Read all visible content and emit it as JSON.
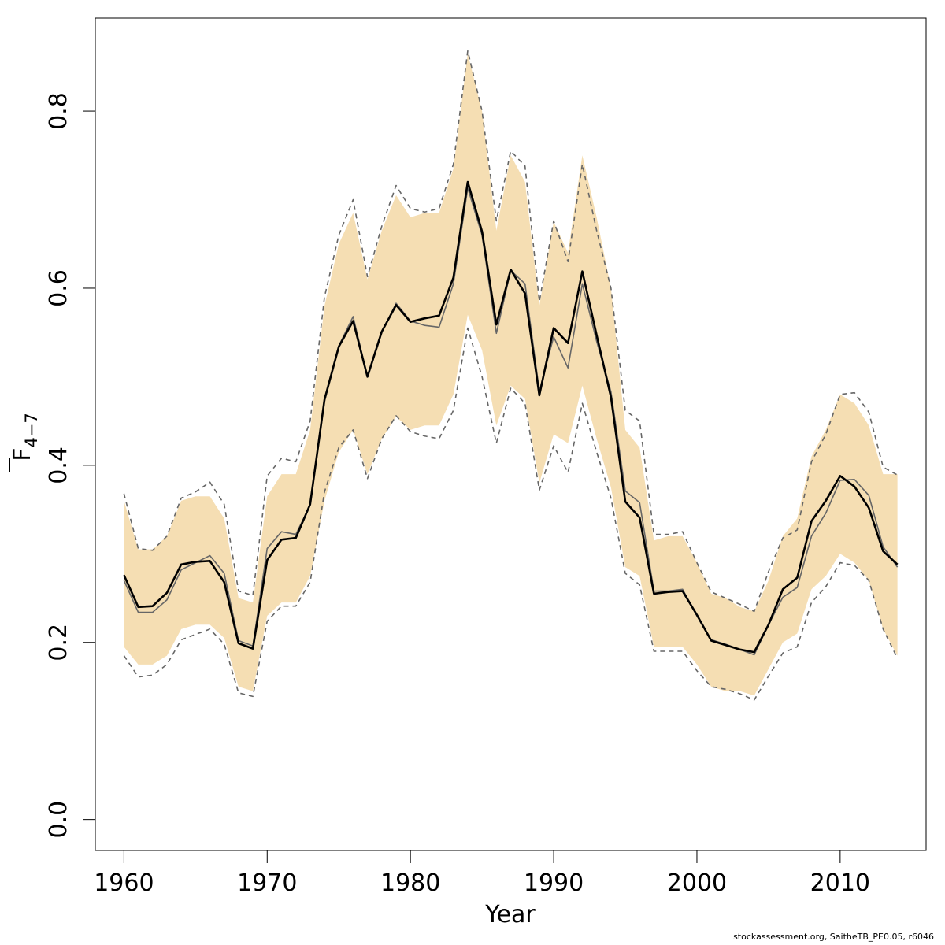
{
  "chart_data": {
    "type": "line",
    "title": "",
    "xlabel": "Year",
    "ylabel_main": "F",
    "ylabel_sub": "4−7",
    "xlim": [
      1958,
      2016
    ],
    "ylim": [
      -0.035,
      0.905
    ],
    "x_ticks": [
      1960,
      1970,
      1980,
      1990,
      2000,
      2010
    ],
    "x_tick_labels": [
      "1960",
      "1970",
      "1980",
      "1990",
      "2000",
      "2010"
    ],
    "y_ticks": [
      0.0,
      0.2,
      0.4,
      0.6,
      0.8
    ],
    "y_tick_labels": [
      "0.0",
      "0.2",
      "0.4",
      "0.6",
      "0.8"
    ],
    "x": [
      1960,
      1961,
      1962,
      1963,
      1964,
      1965,
      1966,
      1967,
      1968,
      1969,
      1970,
      1971,
      1972,
      1973,
      1974,
      1975,
      1976,
      1977,
      1978,
      1979,
      1980,
      1981,
      1982,
      1983,
      1984,
      1985,
      1986,
      1987,
      1988,
      1989,
      1990,
      1991,
      1992,
      1993,
      1994,
      1995,
      1996,
      1997,
      1998,
      1999,
      2000,
      2001,
      2002,
      2003,
      2004,
      2005,
      2006,
      2007,
      2008,
      2009,
      2010,
      2011,
      2012,
      2013,
      2014
    ],
    "series": [
      {
        "role": "band",
        "color": "#f5deb3",
        "upper": [
          0.36,
          0.305,
          0.305,
          0.32,
          0.36,
          0.365,
          0.365,
          0.34,
          0.25,
          0.245,
          0.365,
          0.39,
          0.39,
          0.44,
          0.58,
          0.65,
          0.685,
          0.61,
          0.665,
          0.705,
          0.68,
          0.685,
          0.685,
          0.735,
          0.865,
          0.8,
          0.665,
          0.75,
          0.72,
          0.58,
          0.675,
          0.64,
          0.75,
          0.68,
          0.6,
          0.44,
          0.42,
          0.315,
          0.32,
          0.32,
          0.29,
          0.255,
          0.25,
          0.24,
          0.235,
          0.27,
          0.32,
          0.34,
          0.41,
          0.44,
          0.48,
          0.47,
          0.445,
          0.39,
          0.39
        ],
        "lower": [
          0.195,
          0.175,
          0.175,
          0.185,
          0.215,
          0.22,
          0.22,
          0.205,
          0.15,
          0.145,
          0.23,
          0.245,
          0.245,
          0.275,
          0.36,
          0.415,
          0.44,
          0.39,
          0.43,
          0.455,
          0.44,
          0.445,
          0.445,
          0.48,
          0.57,
          0.53,
          0.445,
          0.49,
          0.475,
          0.38,
          0.435,
          0.425,
          0.49,
          0.43,
          0.375,
          0.285,
          0.275,
          0.195,
          0.195,
          0.195,
          0.175,
          0.15,
          0.145,
          0.145,
          0.14,
          0.17,
          0.2,
          0.21,
          0.26,
          0.275,
          0.3,
          0.29,
          0.27,
          0.215,
          0.185
        ]
      },
      {
        "role": "dashed-upper",
        "color": "#666666",
        "values": [
          0.368,
          0.306,
          0.304,
          0.32,
          0.363,
          0.37,
          0.381,
          0.356,
          0.258,
          0.253,
          0.388,
          0.408,
          0.404,
          0.45,
          0.59,
          0.66,
          0.7,
          0.613,
          0.67,
          0.716,
          0.69,
          0.686,
          0.69,
          0.74,
          0.868,
          0.8,
          0.676,
          0.755,
          0.738,
          0.585,
          0.676,
          0.63,
          0.74,
          0.665,
          0.6,
          0.462,
          0.45,
          0.322,
          0.322,
          0.325,
          0.29,
          0.257,
          0.25,
          0.243,
          0.235,
          0.28,
          0.318,
          0.327,
          0.404,
          0.435,
          0.48,
          0.482,
          0.46,
          0.398,
          0.389
        ]
      },
      {
        "role": "dashed-lower",
        "color": "#666666",
        "values": [
          0.185,
          0.161,
          0.163,
          0.175,
          0.203,
          0.209,
          0.215,
          0.198,
          0.143,
          0.139,
          0.224,
          0.241,
          0.241,
          0.268,
          0.37,
          0.42,
          0.44,
          0.385,
          0.43,
          0.456,
          0.438,
          0.433,
          0.43,
          0.462,
          0.555,
          0.5,
          0.425,
          0.487,
          0.47,
          0.372,
          0.422,
          0.392,
          0.47,
          0.415,
          0.363,
          0.278,
          0.265,
          0.19,
          0.19,
          0.19,
          0.168,
          0.15,
          0.147,
          0.142,
          0.135,
          0.162,
          0.188,
          0.195,
          0.245,
          0.263,
          0.29,
          0.287,
          0.27,
          0.215,
          0.182
        ]
      },
      {
        "role": "gray-line",
        "color": "#666666",
        "values": [
          0.27,
          0.234,
          0.234,
          0.248,
          0.282,
          0.29,
          0.298,
          0.278,
          0.202,
          0.196,
          0.306,
          0.325,
          0.322,
          0.355,
          0.472,
          0.535,
          0.568,
          0.5,
          0.55,
          0.583,
          0.563,
          0.558,
          0.556,
          0.605,
          0.713,
          0.66,
          0.549,
          0.62,
          0.605,
          0.484,
          0.545,
          0.51,
          0.605,
          0.54,
          0.483,
          0.371,
          0.358,
          0.258,
          0.258,
          0.26,
          0.23,
          0.203,
          0.198,
          0.192,
          0.186,
          0.22,
          0.251,
          0.262,
          0.32,
          0.346,
          0.383,
          0.384,
          0.366,
          0.308,
          0.285
        ]
      },
      {
        "role": "main-line",
        "color": "#000000",
        "values": [
          0.276,
          0.24,
          0.241,
          0.256,
          0.288,
          0.291,
          0.292,
          0.268,
          0.199,
          0.193,
          0.293,
          0.316,
          0.318,
          0.356,
          0.474,
          0.534,
          0.563,
          0.5,
          0.551,
          0.581,
          0.562,
          0.566,
          0.569,
          0.612,
          0.72,
          0.664,
          0.559,
          0.621,
          0.594,
          0.479,
          0.555,
          0.538,
          0.619,
          0.547,
          0.477,
          0.359,
          0.341,
          0.255,
          0.257,
          0.258,
          0.231,
          0.202,
          0.197,
          0.192,
          0.189,
          0.22,
          0.26,
          0.273,
          0.337,
          0.36,
          0.388,
          0.376,
          0.352,
          0.303,
          0.288
        ]
      }
    ]
  },
  "footer_text": "stockassessment.org, SaitheTB_PE0.05, r6046"
}
